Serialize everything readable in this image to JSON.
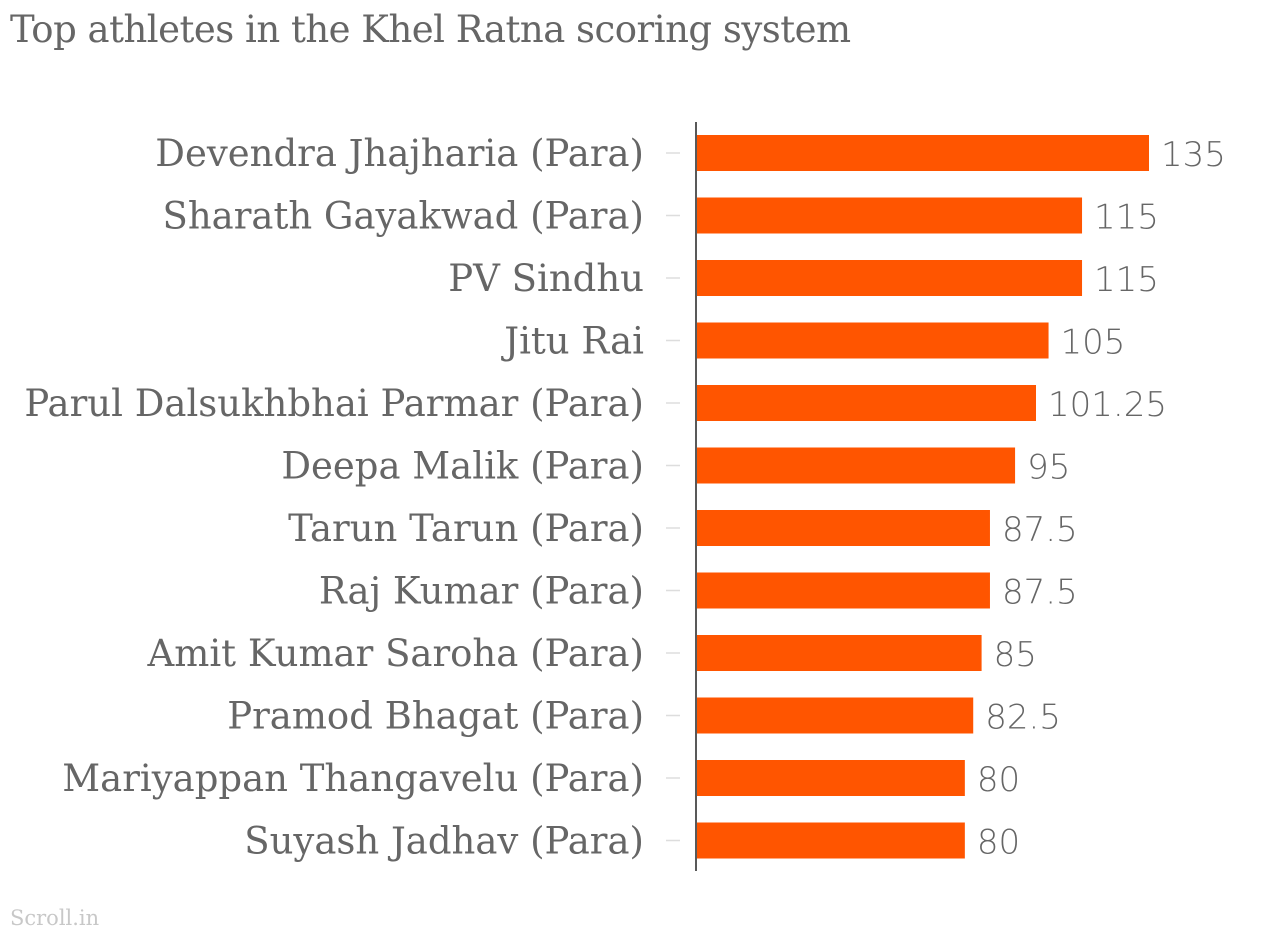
{
  "chart_data": {
    "type": "bar",
    "orientation": "horizontal",
    "title": "Top athletes in the Khel Ratna scoring system",
    "categories": [
      "Devendra Jhajharia (Para)",
      "Sharath Gayakwad (Para)",
      "PV Sindhu",
      "Jitu Rai",
      "Parul Dalsukhbhai Parmar (Para)",
      "Deepa Malik (Para)",
      "Tarun Tarun (Para)",
      "Raj Kumar (Para)",
      "Amit Kumar Saroha (Para)",
      "Pramod Bhagat (Para)",
      "Mariyappan Thangavelu (Para)",
      "Suyash Jadhav (Para)"
    ],
    "values": [
      135,
      115,
      115,
      105,
      101.25,
      95,
      87.5,
      87.5,
      85,
      82.5,
      80,
      80
    ],
    "value_labels": [
      "135",
      "115",
      "115",
      "105",
      "101.25",
      "95",
      "87.5",
      "87.5",
      "85",
      "82.5",
      "80",
      "80"
    ],
    "xlim": [
      0,
      135
    ],
    "xlabel": "",
    "ylabel": "",
    "grid": false,
    "legend": "none",
    "bar_color": "#ff5500"
  },
  "source": "Scroll.in"
}
